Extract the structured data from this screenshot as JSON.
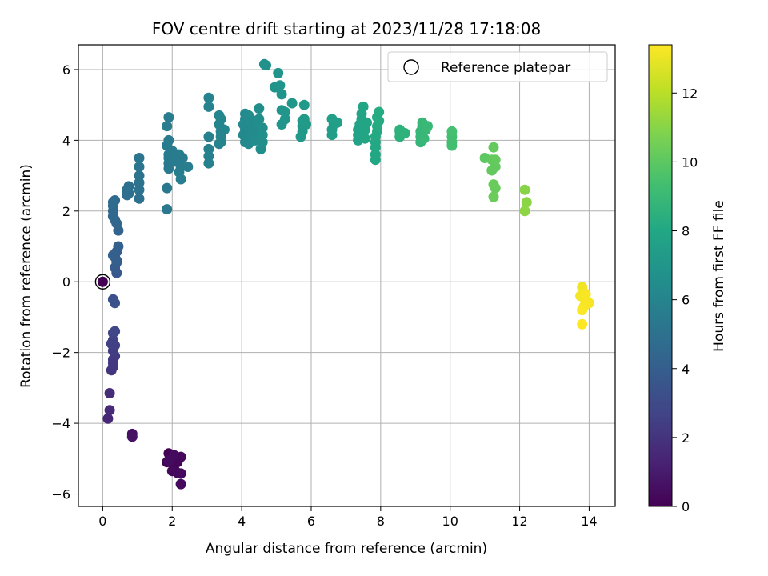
{
  "chart_data": {
    "type": "scatter",
    "title": "FOV centre drift starting at 2023/11/28 17:18:08",
    "xlabel": "Angular distance from reference (arcmin)",
    "ylabel": "Rotation from reference (arcmin)",
    "xlim": [
      -0.7,
      14.75
    ],
    "ylim": [
      -6.35,
      6.7
    ],
    "xticks": [
      0,
      2,
      4,
      6,
      8,
      10,
      12,
      14
    ],
    "yticks": [
      -6,
      -4,
      -2,
      0,
      2,
      4,
      6
    ],
    "grid": true,
    "legend": {
      "placement": "upper right",
      "entries": [
        "Reference platepar"
      ]
    },
    "reference_point": {
      "x": 0,
      "y": 0,
      "label": "Reference platepar"
    },
    "colorbar": {
      "label": "Hours from first FF file",
      "range": [
        0,
        13.4
      ],
      "ticks": [
        0,
        2,
        4,
        6,
        8,
        10,
        12
      ],
      "colormap": "viridis"
    },
    "points": [
      {
        "x": 1.9,
        "y": -4.85,
        "h": 0.05
      },
      {
        "x": 2.0,
        "y": -5.0,
        "h": 0.1
      },
      {
        "x": 1.85,
        "y": -5.1,
        "h": 0.1
      },
      {
        "x": 2.05,
        "y": -5.25,
        "h": 0.15
      },
      {
        "x": 2.15,
        "y": -5.1,
        "h": 0.2
      },
      {
        "x": 2.25,
        "y": -4.95,
        "h": 0.25
      },
      {
        "x": 2.0,
        "y": -5.35,
        "h": 0.3
      },
      {
        "x": 2.15,
        "y": -5.4,
        "h": 0.3
      },
      {
        "x": 2.25,
        "y": -5.42,
        "h": 0.35
      },
      {
        "x": 2.25,
        "y": -5.72,
        "h": 0.35
      },
      {
        "x": 1.9,
        "y": -5.05,
        "h": 0.4
      },
      {
        "x": 2.05,
        "y": -4.9,
        "h": 0.4
      },
      {
        "x": 0.85,
        "y": -4.3,
        "h": 0.6
      },
      {
        "x": 0.85,
        "y": -4.38,
        "h": 0.65
      },
      {
        "x": 0.15,
        "y": -3.87,
        "h": 1.5
      },
      {
        "x": 0.2,
        "y": -3.63,
        "h": 1.6
      },
      {
        "x": 0.2,
        "y": -3.15,
        "h": 1.7
      },
      {
        "x": 0.25,
        "y": -2.5,
        "h": 2.0
      },
      {
        "x": 0.3,
        "y": -2.4,
        "h": 2.1
      },
      {
        "x": 0.3,
        "y": -2.2,
        "h": 2.2
      },
      {
        "x": 0.35,
        "y": -2.1,
        "h": 2.3
      },
      {
        "x": 0.3,
        "y": -1.95,
        "h": 2.4
      },
      {
        "x": 0.35,
        "y": -1.8,
        "h": 2.5
      },
      {
        "x": 0.3,
        "y": -1.65,
        "h": 2.6
      },
      {
        "x": 0.3,
        "y": -1.45,
        "h": 2.7
      },
      {
        "x": 0.35,
        "y": -1.4,
        "h": 2.8
      },
      {
        "x": 0.25,
        "y": -1.75,
        "h": 2.5
      },
      {
        "x": 0.3,
        "y": -2.3,
        "h": 2.2
      },
      {
        "x": 0.3,
        "y": -0.5,
        "h": 3.3
      },
      {
        "x": 0.35,
        "y": -0.6,
        "h": 3.4
      },
      {
        "x": 0.4,
        "y": 0.25,
        "h": 3.7
      },
      {
        "x": 0.35,
        "y": 0.4,
        "h": 3.8
      },
      {
        "x": 0.4,
        "y": 0.55,
        "h": 3.9
      },
      {
        "x": 0.35,
        "y": 0.7,
        "h": 4.0
      },
      {
        "x": 0.4,
        "y": 0.85,
        "h": 4.0
      },
      {
        "x": 0.45,
        "y": 1.0,
        "h": 4.1
      },
      {
        "x": 0.3,
        "y": 0.75,
        "h": 4.1
      },
      {
        "x": 0.4,
        "y": 0.6,
        "h": 4.0
      },
      {
        "x": 0.45,
        "y": 1.45,
        "h": 4.3
      },
      {
        "x": 0.4,
        "y": 1.65,
        "h": 4.4
      },
      {
        "x": 0.35,
        "y": 1.75,
        "h": 4.4
      },
      {
        "x": 0.3,
        "y": 1.85,
        "h": 4.5
      },
      {
        "x": 0.3,
        "y": 2.0,
        "h": 4.5
      },
      {
        "x": 0.3,
        "y": 2.15,
        "h": 4.6
      },
      {
        "x": 0.35,
        "y": 2.3,
        "h": 4.6
      },
      {
        "x": 0.3,
        "y": 2.25,
        "h": 4.7
      },
      {
        "x": 0.7,
        "y": 2.45,
        "h": 4.8
      },
      {
        "x": 0.7,
        "y": 2.6,
        "h": 4.9
      },
      {
        "x": 0.75,
        "y": 2.7,
        "h": 4.9
      },
      {
        "x": 0.75,
        "y": 2.5,
        "h": 4.85
      },
      {
        "x": 1.05,
        "y": 2.35,
        "h": 5.0
      },
      {
        "x": 1.05,
        "y": 2.6,
        "h": 5.05
      },
      {
        "x": 1.05,
        "y": 2.8,
        "h": 5.1
      },
      {
        "x": 1.05,
        "y": 3.0,
        "h": 5.15
      },
      {
        "x": 1.05,
        "y": 3.25,
        "h": 5.2
      },
      {
        "x": 1.05,
        "y": 3.5,
        "h": 5.2
      },
      {
        "x": 1.85,
        "y": 2.05,
        "h": 5.3
      },
      {
        "x": 1.85,
        "y": 2.65,
        "h": 5.35
      },
      {
        "x": 1.9,
        "y": 3.2,
        "h": 5.4
      },
      {
        "x": 1.9,
        "y": 3.35,
        "h": 5.4
      },
      {
        "x": 1.9,
        "y": 3.5,
        "h": 5.45
      },
      {
        "x": 1.9,
        "y": 3.6,
        "h": 5.45
      },
      {
        "x": 1.85,
        "y": 3.85,
        "h": 5.5
      },
      {
        "x": 1.9,
        "y": 4.0,
        "h": 5.5
      },
      {
        "x": 1.85,
        "y": 4.4,
        "h": 5.55
      },
      {
        "x": 1.9,
        "y": 4.65,
        "h": 5.55
      },
      {
        "x": 2.0,
        "y": 3.7,
        "h": 5.5
      },
      {
        "x": 2.1,
        "y": 3.4,
        "h": 5.5
      },
      {
        "x": 2.2,
        "y": 3.6,
        "h": 5.6
      },
      {
        "x": 2.25,
        "y": 3.25,
        "h": 5.6
      },
      {
        "x": 2.2,
        "y": 3.1,
        "h": 5.65
      },
      {
        "x": 2.25,
        "y": 2.9,
        "h": 5.65
      },
      {
        "x": 2.3,
        "y": 3.5,
        "h": 5.6
      },
      {
        "x": 2.45,
        "y": 3.25,
        "h": 5.65
      },
      {
        "x": 3.05,
        "y": 3.35,
        "h": 5.8
      },
      {
        "x": 3.05,
        "y": 3.55,
        "h": 5.8
      },
      {
        "x": 3.05,
        "y": 3.75,
        "h": 5.85
      },
      {
        "x": 3.05,
        "y": 4.1,
        "h": 5.85
      },
      {
        "x": 3.05,
        "y": 4.95,
        "h": 5.9
      },
      {
        "x": 3.05,
        "y": 5.2,
        "h": 5.9
      },
      {
        "x": 3.35,
        "y": 3.9,
        "h": 5.95
      },
      {
        "x": 3.4,
        "y": 4.1,
        "h": 6.0
      },
      {
        "x": 3.4,
        "y": 4.25,
        "h": 6.0
      },
      {
        "x": 3.35,
        "y": 4.45,
        "h": 6.05
      },
      {
        "x": 3.4,
        "y": 4.6,
        "h": 6.05
      },
      {
        "x": 3.35,
        "y": 4.7,
        "h": 6.1
      },
      {
        "x": 3.5,
        "y": 4.3,
        "h": 6.1
      },
      {
        "x": 3.4,
        "y": 3.95,
        "h": 6.0
      },
      {
        "x": 4.1,
        "y": 3.95,
        "h": 6.2
      },
      {
        "x": 4.05,
        "y": 4.15,
        "h": 6.25
      },
      {
        "x": 4.1,
        "y": 4.3,
        "h": 6.25
      },
      {
        "x": 4.05,
        "y": 4.45,
        "h": 6.3
      },
      {
        "x": 4.1,
        "y": 4.6,
        "h": 6.3
      },
      {
        "x": 4.1,
        "y": 4.75,
        "h": 6.35
      },
      {
        "x": 4.2,
        "y": 3.9,
        "h": 6.3
      },
      {
        "x": 4.25,
        "y": 4.05,
        "h": 6.35
      },
      {
        "x": 4.3,
        "y": 4.2,
        "h": 6.35
      },
      {
        "x": 4.25,
        "y": 4.4,
        "h": 6.4
      },
      {
        "x": 4.35,
        "y": 4.55,
        "h": 6.4
      },
      {
        "x": 4.2,
        "y": 4.7,
        "h": 6.45
      },
      {
        "x": 4.4,
        "y": 4.0,
        "h": 6.45
      },
      {
        "x": 4.45,
        "y": 4.2,
        "h": 6.5
      },
      {
        "x": 4.5,
        "y": 4.4,
        "h": 6.5
      },
      {
        "x": 4.5,
        "y": 4.6,
        "h": 6.55
      },
      {
        "x": 4.5,
        "y": 4.9,
        "h": 6.55
      },
      {
        "x": 4.55,
        "y": 3.75,
        "h": 6.55
      },
      {
        "x": 4.6,
        "y": 3.95,
        "h": 6.6
      },
      {
        "x": 4.6,
        "y": 4.15,
        "h": 6.6
      },
      {
        "x": 4.6,
        "y": 4.35,
        "h": 6.6
      },
      {
        "x": 4.3,
        "y": 4.3,
        "h": 6.4
      },
      {
        "x": 4.15,
        "y": 4.5,
        "h": 6.35
      },
      {
        "x": 4.65,
        "y": 6.15,
        "h": 6.7
      },
      {
        "x": 4.7,
        "y": 6.12,
        "h": 6.7
      },
      {
        "x": 4.95,
        "y": 5.5,
        "h": 6.8
      },
      {
        "x": 5.05,
        "y": 5.5,
        "h": 6.8
      },
      {
        "x": 5.05,
        "y": 5.9,
        "h": 6.85
      },
      {
        "x": 5.1,
        "y": 5.55,
        "h": 6.85
      },
      {
        "x": 5.15,
        "y": 5.3,
        "h": 6.9
      },
      {
        "x": 5.15,
        "y": 4.85,
        "h": 6.9
      },
      {
        "x": 5.15,
        "y": 4.45,
        "h": 6.95
      },
      {
        "x": 5.25,
        "y": 4.6,
        "h": 6.95
      },
      {
        "x": 5.25,
        "y": 4.8,
        "h": 7.0
      },
      {
        "x": 5.45,
        "y": 5.05,
        "h": 7.05
      },
      {
        "x": 5.7,
        "y": 4.1,
        "h": 7.1
      },
      {
        "x": 5.75,
        "y": 4.25,
        "h": 7.15
      },
      {
        "x": 5.75,
        "y": 4.4,
        "h": 7.15
      },
      {
        "x": 5.75,
        "y": 4.55,
        "h": 7.2
      },
      {
        "x": 5.8,
        "y": 4.6,
        "h": 7.2
      },
      {
        "x": 5.8,
        "y": 5.0,
        "h": 7.25
      },
      {
        "x": 5.85,
        "y": 4.45,
        "h": 7.2
      },
      {
        "x": 6.6,
        "y": 4.15,
        "h": 7.4
      },
      {
        "x": 6.6,
        "y": 4.3,
        "h": 7.45
      },
      {
        "x": 6.65,
        "y": 4.45,
        "h": 7.45
      },
      {
        "x": 6.6,
        "y": 4.6,
        "h": 7.5
      },
      {
        "x": 6.75,
        "y": 4.5,
        "h": 7.5
      },
      {
        "x": 7.35,
        "y": 4.0,
        "h": 7.7
      },
      {
        "x": 7.35,
        "y": 4.15,
        "h": 7.7
      },
      {
        "x": 7.35,
        "y": 4.3,
        "h": 7.75
      },
      {
        "x": 7.4,
        "y": 4.45,
        "h": 7.75
      },
      {
        "x": 7.45,
        "y": 4.6,
        "h": 7.8
      },
      {
        "x": 7.45,
        "y": 4.75,
        "h": 7.8
      },
      {
        "x": 7.5,
        "y": 4.95,
        "h": 7.85
      },
      {
        "x": 7.55,
        "y": 4.05,
        "h": 7.8
      },
      {
        "x": 7.55,
        "y": 4.3,
        "h": 7.85
      },
      {
        "x": 7.6,
        "y": 4.5,
        "h": 7.85
      },
      {
        "x": 7.85,
        "y": 3.45,
        "h": 8.0
      },
      {
        "x": 7.85,
        "y": 3.6,
        "h": 8.0
      },
      {
        "x": 7.85,
        "y": 3.8,
        "h": 8.05
      },
      {
        "x": 7.85,
        "y": 3.95,
        "h": 8.05
      },
      {
        "x": 7.85,
        "y": 4.1,
        "h": 8.1
      },
      {
        "x": 7.9,
        "y": 4.25,
        "h": 8.1
      },
      {
        "x": 7.9,
        "y": 4.4,
        "h": 8.15
      },
      {
        "x": 7.95,
        "y": 4.55,
        "h": 8.15
      },
      {
        "x": 7.9,
        "y": 4.65,
        "h": 8.2
      },
      {
        "x": 7.95,
        "y": 4.8,
        "h": 8.2
      },
      {
        "x": 8.55,
        "y": 4.1,
        "h": 8.5
      },
      {
        "x": 8.55,
        "y": 4.25,
        "h": 8.5
      },
      {
        "x": 8.55,
        "y": 4.3,
        "h": 8.55
      },
      {
        "x": 8.7,
        "y": 4.2,
        "h": 8.55
      },
      {
        "x": 9.15,
        "y": 3.95,
        "h": 8.8
      },
      {
        "x": 9.15,
        "y": 4.1,
        "h": 8.8
      },
      {
        "x": 9.15,
        "y": 4.25,
        "h": 8.85
      },
      {
        "x": 9.2,
        "y": 4.4,
        "h": 8.85
      },
      {
        "x": 9.2,
        "y": 4.5,
        "h": 8.9
      },
      {
        "x": 9.3,
        "y": 4.3,
        "h": 8.9
      },
      {
        "x": 9.35,
        "y": 4.4,
        "h": 8.95
      },
      {
        "x": 9.25,
        "y": 4.05,
        "h": 8.9
      },
      {
        "x": 10.05,
        "y": 3.85,
        "h": 9.3
      },
      {
        "x": 10.05,
        "y": 3.95,
        "h": 9.35
      },
      {
        "x": 10.05,
        "y": 4.1,
        "h": 9.35
      },
      {
        "x": 10.05,
        "y": 4.25,
        "h": 9.4
      },
      {
        "x": 11.0,
        "y": 3.5,
        "h": 10.0
      },
      {
        "x": 11.2,
        "y": 3.45,
        "h": 10.1
      },
      {
        "x": 11.2,
        "y": 3.15,
        "h": 10.15
      },
      {
        "x": 11.3,
        "y": 3.25,
        "h": 10.15
      },
      {
        "x": 11.3,
        "y": 3.45,
        "h": 10.2
      },
      {
        "x": 11.25,
        "y": 3.8,
        "h": 10.2
      },
      {
        "x": 11.25,
        "y": 2.75,
        "h": 10.3
      },
      {
        "x": 11.3,
        "y": 2.65,
        "h": 10.3
      },
      {
        "x": 11.25,
        "y": 2.4,
        "h": 10.35
      },
      {
        "x": 12.15,
        "y": 2.6,
        "h": 11.0
      },
      {
        "x": 12.2,
        "y": 2.25,
        "h": 11.05
      },
      {
        "x": 12.15,
        "y": 2.0,
        "h": 11.1
      },
      {
        "x": 13.8,
        "y": -0.15,
        "h": 13.1
      },
      {
        "x": 13.85,
        "y": -0.3,
        "h": 13.15
      },
      {
        "x": 13.85,
        "y": -0.45,
        "h": 13.2
      },
      {
        "x": 13.75,
        "y": -0.4,
        "h": 13.2
      },
      {
        "x": 13.9,
        "y": -0.5,
        "h": 13.25
      },
      {
        "x": 13.95,
        "y": -0.55,
        "h": 13.25
      },
      {
        "x": 14.0,
        "y": -0.6,
        "h": 13.3
      },
      {
        "x": 13.85,
        "y": -0.7,
        "h": 13.3
      },
      {
        "x": 13.8,
        "y": -0.8,
        "h": 13.35
      },
      {
        "x": 13.9,
        "y": -0.35,
        "h": 13.3
      },
      {
        "x": 13.8,
        "y": -1.2,
        "h": 13.4
      }
    ]
  }
}
